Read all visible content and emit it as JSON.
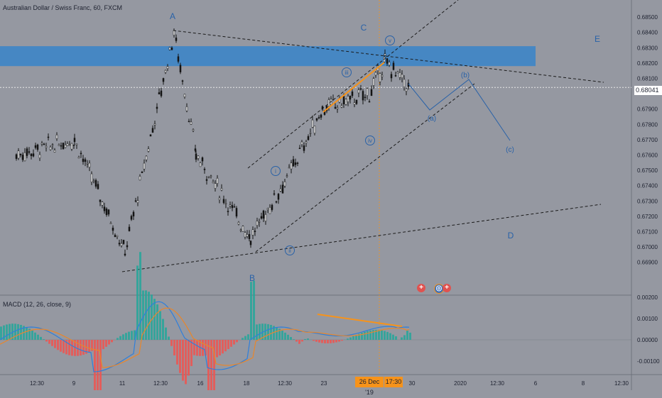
{
  "header": {
    "symbol_title": "Australian Dollar / Swiss Franc, 60, FXCM"
  },
  "price_axis": {
    "ticks": [
      "0.68500",
      "0.68400",
      "0.68300",
      "0.68200",
      "0.68100",
      "0.67900",
      "0.67800",
      "0.67700",
      "0.67600",
      "0.67500",
      "0.67400",
      "0.67300",
      "0.67200",
      "0.67100",
      "0.67000",
      "0.66900"
    ],
    "current_price": "0.68041"
  },
  "time_axis": {
    "ticks": [
      "12:30",
      "9",
      "11",
      "12:30",
      "16",
      "18",
      "12:30",
      "23",
      "26 Dec '19",
      "17:30",
      "30",
      "2020",
      "12:30",
      "6",
      "8",
      "12:30"
    ],
    "highlighted": [
      "26 Dec '19",
      "17:30"
    ]
  },
  "wave_labels": {
    "A": "A",
    "B": "B",
    "C": "C",
    "D": "D",
    "E": "E",
    "i": "i",
    "ii": "ii",
    "iii": "iii",
    "iv": "iv",
    "v": "v",
    "a": "(a)",
    "b": "(b)",
    "c": "(c)"
  },
  "macd": {
    "title": "MACD (12, 26, close, 9)",
    "ticks": [
      "0.00200",
      "0.00100",
      "0.00000",
      "-0.00100"
    ]
  },
  "colors": {
    "background": "#9598a1",
    "zone": "#3d85c6",
    "orange": "#f7931a",
    "macd_line": "#2f7fdb",
    "signal_line": "#e9862a",
    "hist_pos": "#26a69a",
    "hist_neg": "#ef5350",
    "label": "#2962a8"
  },
  "icons": [
    "plus-circle-icon",
    "globe-icon",
    "plus-circle-icon"
  ],
  "chart_data": {
    "type": "line",
    "title": "Australian Dollar / Swiss Franc, 60, FXCM",
    "x": [
      "12:30",
      "9",
      "11",
      "12:30",
      "16",
      "18",
      "12:30",
      "23",
      "26 Dec '19",
      "17:30",
      "30",
      "2020",
      "12:30",
      "6",
      "8",
      "12:30"
    ],
    "ylim": [
      0.6685,
      0.6855
    ],
    "series": [
      {
        "name": "AUDCHF",
        "approx_path": [
          {
            "x": "12:30",
            "y": 0.676
          },
          {
            "x": "9",
            "y": 0.677
          },
          {
            "x": "11",
            "y": 0.6697
          },
          {
            "x": "12:30",
            "y": 0.684
          },
          {
            "x": "16",
            "y": 0.676
          },
          {
            "x": "18",
            "y": 0.6706
          },
          {
            "x": "12:30",
            "y": 0.6745
          },
          {
            "x": "23",
            "y": 0.679
          },
          {
            "x": "26 Dec '19",
            "y": 0.68
          },
          {
            "x": "17:30",
            "y": 0.6821
          },
          {
            "x": "30",
            "y": 0.6804
          }
        ]
      }
    ],
    "current_price": 0.68041,
    "resistance_zone": [
      0.6818,
      0.6831
    ],
    "macd_ylim": [
      -0.0015,
      0.0025
    ],
    "legend": "none",
    "grid": false
  }
}
